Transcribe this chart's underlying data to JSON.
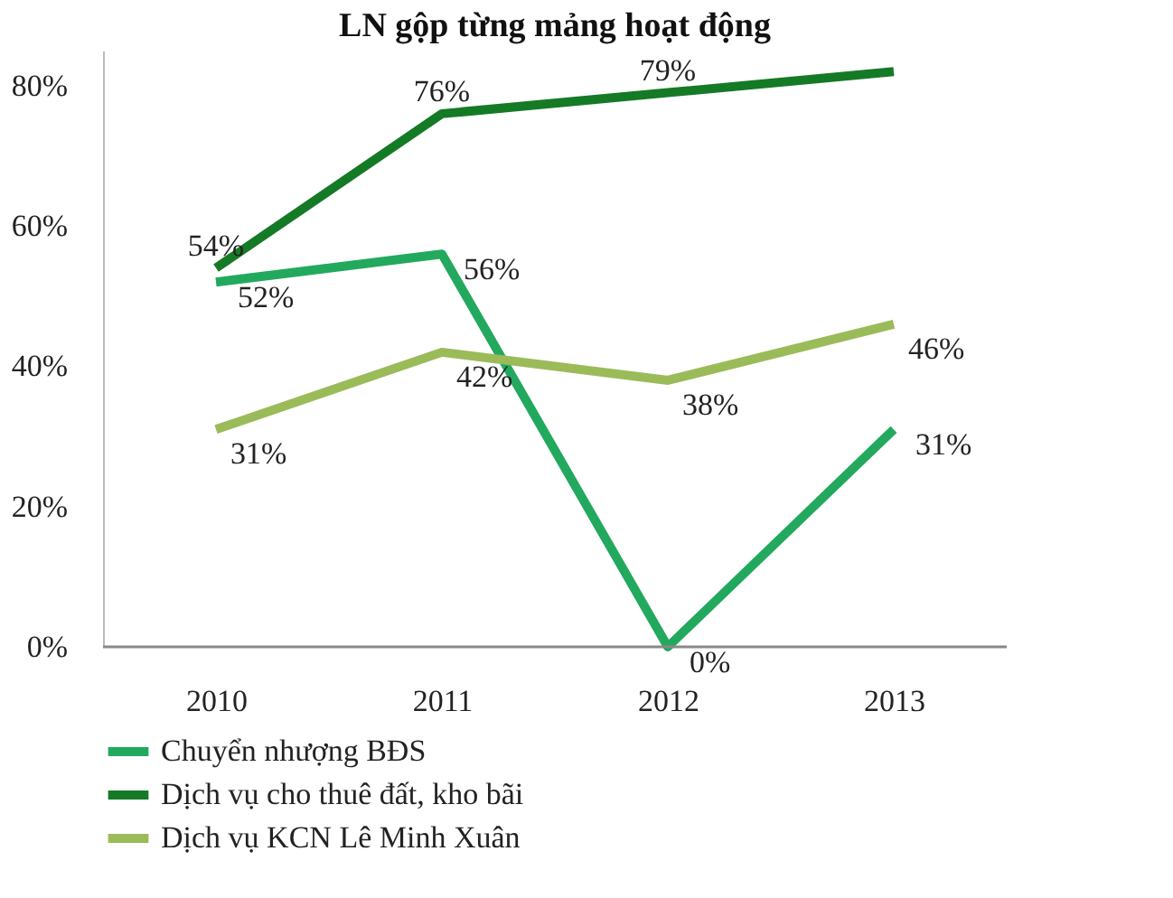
{
  "chart_data": {
    "type": "line",
    "title": "LN gộp từng mảng hoạt động",
    "categories": [
      "2010",
      "2011",
      "2012",
      "2013"
    ],
    "series": [
      {
        "name": "Chuyển nhượng BĐS",
        "color": "#22a95e",
        "values": [
          52,
          56,
          0,
          31
        ],
        "value_labels": [
          "52%",
          "56%",
          "0%",
          "31%"
        ]
      },
      {
        "name": "Dịch vụ cho thuê đất, kho bãi",
        "color": "#157a25",
        "values": [
          54,
          76,
          79,
          82
        ],
        "value_labels": [
          "54%",
          "76%",
          "79%",
          null
        ]
      },
      {
        "name": "Dịch vụ KCN Lê Minh Xuân",
        "color": "#9bbb59",
        "values": [
          31,
          42,
          38,
          46
        ],
        "value_labels": [
          "31%",
          "42%",
          "38%",
          "46%"
        ]
      }
    ],
    "ylim": [
      0,
      85
    ],
    "yticks": [
      {
        "value": 0,
        "label": "0%"
      },
      {
        "value": 20,
        "label": "20%"
      },
      {
        "value": 40,
        "label": "40%"
      },
      {
        "value": 60,
        "label": "60%"
      },
      {
        "value": 80,
        "label": "80%"
      }
    ],
    "grid": false,
    "legend": "bottom",
    "marker": "none",
    "line_style": "solid"
  }
}
